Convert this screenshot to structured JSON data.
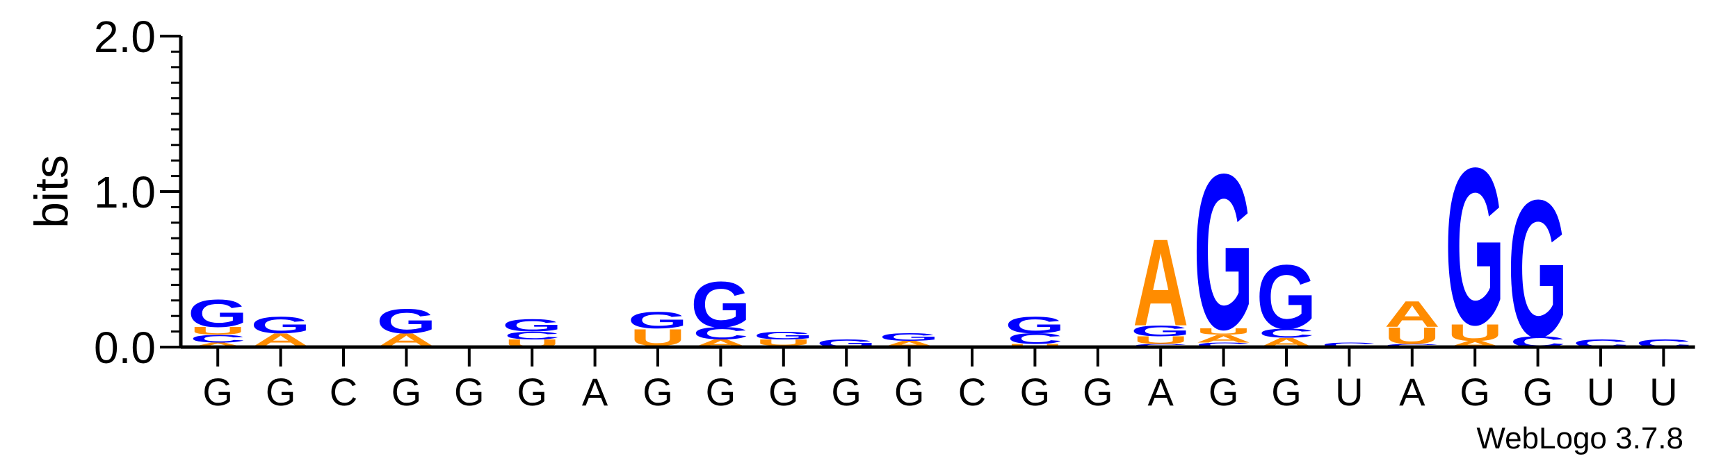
{
  "chart_data": {
    "type": "sequence-logo",
    "ylabel": "bits",
    "ylim": [
      0,
      2.0
    ],
    "yticks": [
      {
        "value": 0,
        "label": "0.0"
      },
      {
        "value": 1,
        "label": "1.0"
      },
      {
        "value": 2,
        "label": "2.0"
      }
    ],
    "footer": "WebLogo 3.7.8",
    "colors": {
      "G": "#0000ff",
      "C": "#0000ff",
      "A": "#ff8c00",
      "U": "#ff8c00"
    },
    "positions": [
      {
        "label": "G",
        "stack": [
          {
            "l": "A",
            "v": 0.03
          },
          {
            "l": "C",
            "v": 0.05
          },
          {
            "l": "U",
            "v": 0.05
          },
          {
            "l": "G",
            "v": 0.18
          }
        ]
      },
      {
        "label": "G",
        "stack": [
          {
            "l": "C",
            "v": 0.01
          },
          {
            "l": "A",
            "v": 0.08
          },
          {
            "l": "G",
            "v": 0.11
          }
        ]
      },
      {
        "label": "C",
        "stack": []
      },
      {
        "label": "G",
        "stack": [
          {
            "l": "C",
            "v": 0.01
          },
          {
            "l": "A",
            "v": 0.08
          },
          {
            "l": "G",
            "v": 0.16
          }
        ]
      },
      {
        "label": "G",
        "stack": []
      },
      {
        "label": "G",
        "stack": [
          {
            "l": "U",
            "v": 0.05
          },
          {
            "l": "C",
            "v": 0.05
          },
          {
            "l": "G",
            "v": 0.08
          }
        ]
      },
      {
        "label": "A",
        "stack": []
      },
      {
        "label": "G",
        "stack": [
          {
            "l": "C",
            "v": 0.01
          },
          {
            "l": "U",
            "v": 0.11
          },
          {
            "l": "G",
            "v": 0.11
          }
        ]
      },
      {
        "label": "G",
        "stack": [
          {
            "l": "A",
            "v": 0.05
          },
          {
            "l": "C",
            "v": 0.08
          },
          {
            "l": "G",
            "v": 0.3
          }
        ]
      },
      {
        "label": "G",
        "stack": [
          {
            "l": "A",
            "v": 0.01
          },
          {
            "l": "U",
            "v": 0.04
          },
          {
            "l": "G",
            "v": 0.05
          }
        ]
      },
      {
        "label": "G",
        "stack": [
          {
            "l": "G",
            "v": 0.05
          }
        ]
      },
      {
        "label": "G",
        "stack": [
          {
            "l": "A",
            "v": 0.04
          },
          {
            "l": "G",
            "v": 0.05
          }
        ]
      },
      {
        "label": "C",
        "stack": []
      },
      {
        "label": "G",
        "stack": [
          {
            "l": "U",
            "v": 0.02
          },
          {
            "l": "C",
            "v": 0.07
          },
          {
            "l": "G",
            "v": 0.11
          }
        ]
      },
      {
        "label": "G",
        "stack": []
      },
      {
        "label": "A",
        "stack": [
          {
            "l": "C",
            "v": 0.02
          },
          {
            "l": "U",
            "v": 0.05
          },
          {
            "l": "G",
            "v": 0.07
          },
          {
            "l": "A",
            "v": 0.57
          }
        ]
      },
      {
        "label": "G",
        "stack": [
          {
            "l": "C",
            "v": 0.03
          },
          {
            "l": "A",
            "v": 0.05
          },
          {
            "l": "U",
            "v": 0.04
          },
          {
            "l": "G",
            "v": 1.02
          }
        ]
      },
      {
        "label": "G",
        "stack": [
          {
            "l": "A",
            "v": 0.06
          },
          {
            "l": "C",
            "v": 0.06
          },
          {
            "l": "G",
            "v": 0.42
          }
        ]
      },
      {
        "label": "U",
        "stack": [
          {
            "l": "C",
            "v": 0.03
          }
        ]
      },
      {
        "label": "A",
        "stack": [
          {
            "l": "C",
            "v": 0.02
          },
          {
            "l": "U",
            "v": 0.11
          },
          {
            "l": "A",
            "v": 0.17
          }
        ]
      },
      {
        "label": "G",
        "stack": [
          {
            "l": "A",
            "v": 0.04
          },
          {
            "l": "U",
            "v": 0.11
          },
          {
            "l": "G",
            "v": 1.03
          }
        ]
      },
      {
        "label": "G",
        "stack": [
          {
            "l": "C",
            "v": 0.07
          },
          {
            "l": "G",
            "v": 0.9
          }
        ]
      },
      {
        "label": "U",
        "stack": [
          {
            "l": "C",
            "v": 0.05
          }
        ]
      },
      {
        "label": "U",
        "stack": [
          {
            "l": "C",
            "v": 0.05
          }
        ]
      }
    ]
  }
}
